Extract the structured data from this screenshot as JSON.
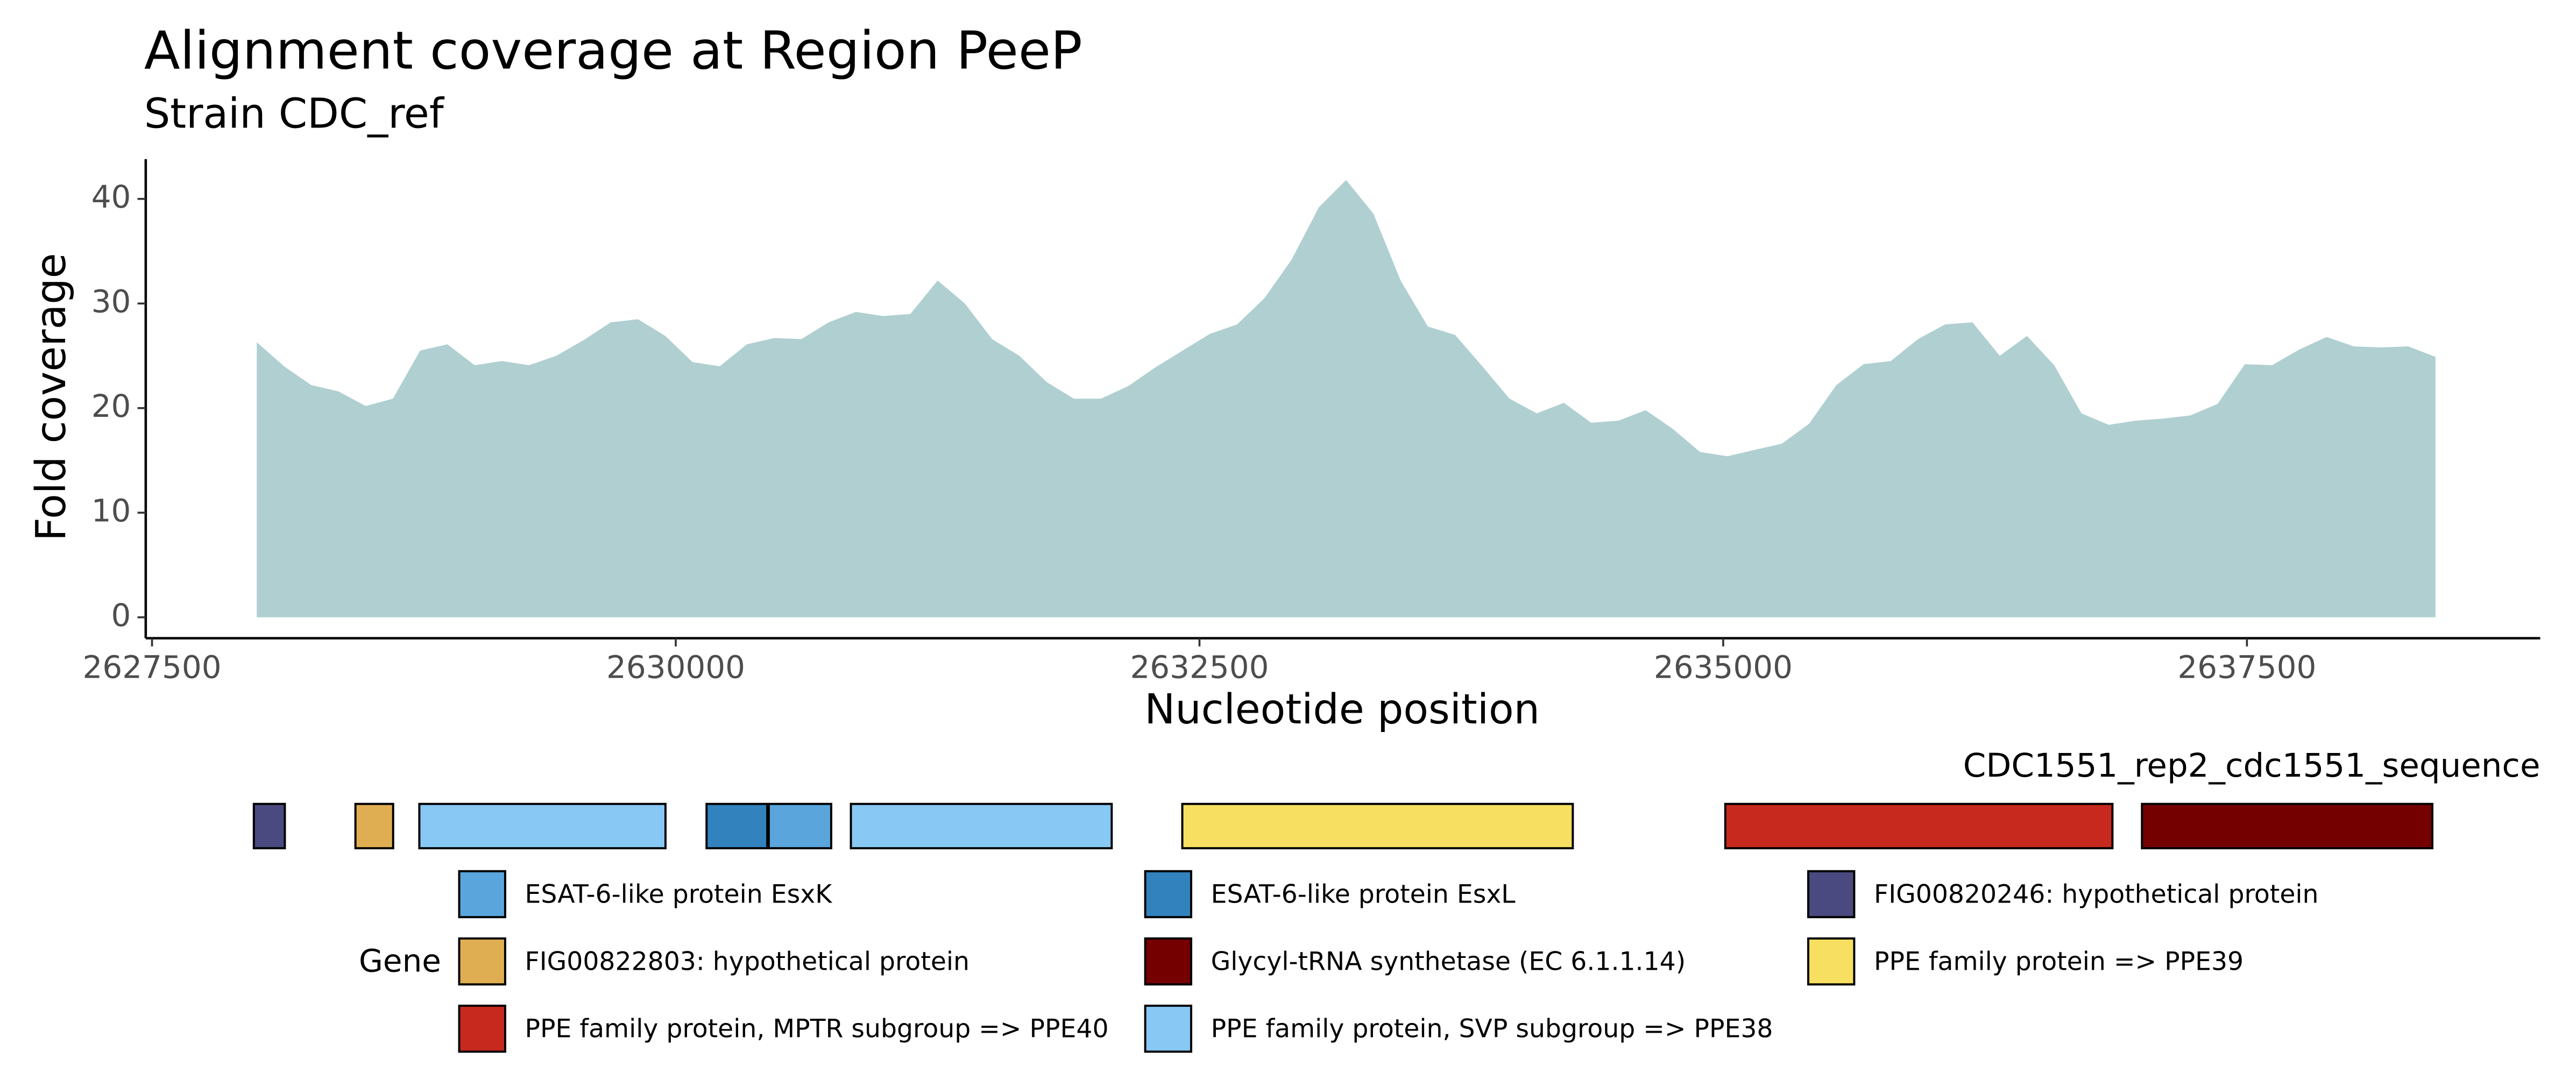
{
  "chart_data": {
    "type": "area",
    "title": "Alignment coverage at Region PeeP",
    "subtitle": "Strain CDC_ref",
    "x_label": "Nucleotide position",
    "y_label": "Fold coverage",
    "color": "#b0cfd1",
    "x": [
      2628000,
      2628130,
      2628260,
      2628390,
      2628520,
      2628650,
      2628780,
      2628910,
      2629040,
      2629170,
      2629300,
      2629430,
      2629560,
      2629690,
      2629820,
      2629950,
      2630080,
      2630210,
      2630340,
      2630470,
      2630600,
      2630730,
      2630860,
      2630990,
      2631120,
      2631250,
      2631380,
      2631510,
      2631640,
      2631770,
      2631900,
      2632030,
      2632160,
      2632290,
      2632420,
      2632550,
      2632680,
      2632810,
      2632940,
      2633070,
      2633200,
      2633330,
      2633460,
      2633590,
      2633720,
      2633850,
      2633980,
      2634110,
      2634240,
      2634370,
      2634500,
      2634630,
      2634760,
      2634890,
      2635020,
      2635150,
      2635280,
      2635410,
      2635540,
      2635670,
      2635800,
      2635930,
      2636060,
      2636190,
      2636320,
      2636450,
      2636580,
      2636710,
      2636840,
      2636970,
      2637100,
      2637230,
      2637360,
      2637490,
      2637620,
      2637750,
      2637880,
      2638010,
      2638140,
      2638270,
      2638400
    ],
    "values": [
      26.3,
      24,
      22.2,
      21.6,
      20.2,
      20.9,
      25.5,
      26.1,
      24.1,
      24.5,
      24.1,
      25,
      26.5,
      28.2,
      28.5,
      26.9,
      24.4,
      24,
      26.1,
      26.7,
      26.6,
      28.2,
      29.2,
      28.8,
      29,
      32.2,
      30,
      26.6,
      25,
      22.5,
      20.9,
      20.9,
      22.1,
      23.9,
      25.5,
      27.1,
      28,
      30.5,
      34.2,
      39.2,
      41.8,
      38.6,
      32.2,
      27.8,
      27,
      24,
      20.9,
      19.5,
      20.5,
      18.6,
      18.8,
      19.8,
      18,
      15.8,
      15.4,
      16,
      16.6,
      18.5,
      22.2,
      24.2,
      24.5,
      26.6,
      28,
      28.2,
      25,
      26.9,
      24.1,
      19.5,
      18.4,
      18.8,
      19,
      19.3,
      20.4,
      24.2,
      24.1,
      25.6,
      26.8,
      25.9,
      25.8,
      25.9,
      24.9
    ],
    "xlim": [
      2627470,
      2638900
    ],
    "xticks": [
      2627500,
      2630000,
      2632500,
      2635000,
      2637500
    ],
    "ylim": [
      -2,
      43.8
    ],
    "yticks": [
      0,
      10,
      20,
      30,
      40
    ],
    "grid": false,
    "gene_track": {
      "label": "CDC1551_rep2_cdc1551_sequence",
      "genes": [
        {
          "gene": "FIG00820246: hypothetical protein",
          "start": 2627986,
          "end": 2628134
        },
        {
          "gene": "FIG00822803: hypothetical protein",
          "start": 2628471,
          "end": 2628651
        },
        {
          "gene": "PPE family protein, SVP subgroup => PPE38",
          "start": 2628776,
          "end": 2629951
        },
        {
          "gene": "ESAT-6-like protein EsxL",
          "start": 2630147,
          "end": 2630437
        },
        {
          "gene": "ESAT-6-like protein EsxK",
          "start": 2630444,
          "end": 2630742
        },
        {
          "gene": "PPE family protein, SVP subgroup => PPE38",
          "start": 2630836,
          "end": 2632081
        },
        {
          "gene": "PPE family protein => PPE39",
          "start": 2632418,
          "end": 2634282
        },
        {
          "gene": "PPE family protein, MPTR subgroup => PPE40",
          "start": 2635010,
          "end": 2636858
        },
        {
          "gene": "Glycyl-tRNA synthetase (EC 6.1.1.14)",
          "start": 2636999,
          "end": 2638385
        }
      ]
    },
    "legend": {
      "title": "Gene",
      "items": [
        {
          "name": "ESAT-6-like protein EsxK",
          "color": "#5aa5dc"
        },
        {
          "name": "ESAT-6-like protein EsxL",
          "color": "#3182bd"
        },
        {
          "name": "FIG00820246: hypothetical protein",
          "color": "#4a4a80"
        },
        {
          "name": "FIG00822803: hypothetical protein",
          "color": "#dfae52"
        },
        {
          "name": "Glycyl-tRNA synthetase (EC 6.1.1.14)",
          "color": "#750000"
        },
        {
          "name": "PPE family protein => PPE39",
          "color": "#f6df61"
        },
        {
          "name": "PPE family protein, MPTR subgroup => PPE40",
          "color": "#c8291e"
        },
        {
          "name": "PPE family protein, SVP subgroup => PPE38",
          "color": "#87c8f5"
        }
      ]
    }
  }
}
